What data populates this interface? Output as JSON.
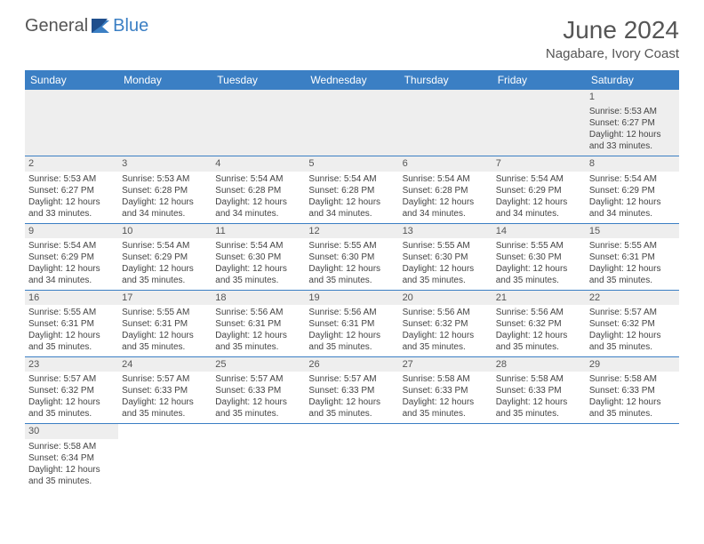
{
  "brand": {
    "part1": "General",
    "part2": "Blue"
  },
  "title": "June 2024",
  "location": "Nagabare, Ivory Coast",
  "colors": {
    "header_bg": "#3b7fc4",
    "header_text": "#ffffff",
    "daynum_bg": "#eeeeee",
    "row_divider": "#3b7fc4",
    "body_text": "#444444",
    "title_text": "#555555"
  },
  "weekdays": [
    "Sunday",
    "Monday",
    "Tuesday",
    "Wednesday",
    "Thursday",
    "Friday",
    "Saturday"
  ],
  "weeks": [
    [
      null,
      null,
      null,
      null,
      null,
      null,
      {
        "n": "1",
        "sr": "5:53 AM",
        "ss": "6:27 PM",
        "d1": "12 hours",
        "d2": "and 33 minutes."
      }
    ],
    [
      {
        "n": "2",
        "sr": "5:53 AM",
        "ss": "6:27 PM",
        "d1": "12 hours",
        "d2": "and 33 minutes."
      },
      {
        "n": "3",
        "sr": "5:53 AM",
        "ss": "6:28 PM",
        "d1": "12 hours",
        "d2": "and 34 minutes."
      },
      {
        "n": "4",
        "sr": "5:54 AM",
        "ss": "6:28 PM",
        "d1": "12 hours",
        "d2": "and 34 minutes."
      },
      {
        "n": "5",
        "sr": "5:54 AM",
        "ss": "6:28 PM",
        "d1": "12 hours",
        "d2": "and 34 minutes."
      },
      {
        "n": "6",
        "sr": "5:54 AM",
        "ss": "6:28 PM",
        "d1": "12 hours",
        "d2": "and 34 minutes."
      },
      {
        "n": "7",
        "sr": "5:54 AM",
        "ss": "6:29 PM",
        "d1": "12 hours",
        "d2": "and 34 minutes."
      },
      {
        "n": "8",
        "sr": "5:54 AM",
        "ss": "6:29 PM",
        "d1": "12 hours",
        "d2": "and 34 minutes."
      }
    ],
    [
      {
        "n": "9",
        "sr": "5:54 AM",
        "ss": "6:29 PM",
        "d1": "12 hours",
        "d2": "and 34 minutes."
      },
      {
        "n": "10",
        "sr": "5:54 AM",
        "ss": "6:29 PM",
        "d1": "12 hours",
        "d2": "and 35 minutes."
      },
      {
        "n": "11",
        "sr": "5:54 AM",
        "ss": "6:30 PM",
        "d1": "12 hours",
        "d2": "and 35 minutes."
      },
      {
        "n": "12",
        "sr": "5:55 AM",
        "ss": "6:30 PM",
        "d1": "12 hours",
        "d2": "and 35 minutes."
      },
      {
        "n": "13",
        "sr": "5:55 AM",
        "ss": "6:30 PM",
        "d1": "12 hours",
        "d2": "and 35 minutes."
      },
      {
        "n": "14",
        "sr": "5:55 AM",
        "ss": "6:30 PM",
        "d1": "12 hours",
        "d2": "and 35 minutes."
      },
      {
        "n": "15",
        "sr": "5:55 AM",
        "ss": "6:31 PM",
        "d1": "12 hours",
        "d2": "and 35 minutes."
      }
    ],
    [
      {
        "n": "16",
        "sr": "5:55 AM",
        "ss": "6:31 PM",
        "d1": "12 hours",
        "d2": "and 35 minutes."
      },
      {
        "n": "17",
        "sr": "5:55 AM",
        "ss": "6:31 PM",
        "d1": "12 hours",
        "d2": "and 35 minutes."
      },
      {
        "n": "18",
        "sr": "5:56 AM",
        "ss": "6:31 PM",
        "d1": "12 hours",
        "d2": "and 35 minutes."
      },
      {
        "n": "19",
        "sr": "5:56 AM",
        "ss": "6:31 PM",
        "d1": "12 hours",
        "d2": "and 35 minutes."
      },
      {
        "n": "20",
        "sr": "5:56 AM",
        "ss": "6:32 PM",
        "d1": "12 hours",
        "d2": "and 35 minutes."
      },
      {
        "n": "21",
        "sr": "5:56 AM",
        "ss": "6:32 PM",
        "d1": "12 hours",
        "d2": "and 35 minutes."
      },
      {
        "n": "22",
        "sr": "5:57 AM",
        "ss": "6:32 PM",
        "d1": "12 hours",
        "d2": "and 35 minutes."
      }
    ],
    [
      {
        "n": "23",
        "sr": "5:57 AM",
        "ss": "6:32 PM",
        "d1": "12 hours",
        "d2": "and 35 minutes."
      },
      {
        "n": "24",
        "sr": "5:57 AM",
        "ss": "6:33 PM",
        "d1": "12 hours",
        "d2": "and 35 minutes."
      },
      {
        "n": "25",
        "sr": "5:57 AM",
        "ss": "6:33 PM",
        "d1": "12 hours",
        "d2": "and 35 minutes."
      },
      {
        "n": "26",
        "sr": "5:57 AM",
        "ss": "6:33 PM",
        "d1": "12 hours",
        "d2": "and 35 minutes."
      },
      {
        "n": "27",
        "sr": "5:58 AM",
        "ss": "6:33 PM",
        "d1": "12 hours",
        "d2": "and 35 minutes."
      },
      {
        "n": "28",
        "sr": "5:58 AM",
        "ss": "6:33 PM",
        "d1": "12 hours",
        "d2": "and 35 minutes."
      },
      {
        "n": "29",
        "sr": "5:58 AM",
        "ss": "6:33 PM",
        "d1": "12 hours",
        "d2": "and 35 minutes."
      }
    ],
    [
      {
        "n": "30",
        "sr": "5:58 AM",
        "ss": "6:34 PM",
        "d1": "12 hours",
        "d2": "and 35 minutes."
      },
      null,
      null,
      null,
      null,
      null,
      null
    ]
  ],
  "labels": {
    "sunrise": "Sunrise:",
    "sunset": "Sunset:",
    "daylight": "Daylight:"
  }
}
